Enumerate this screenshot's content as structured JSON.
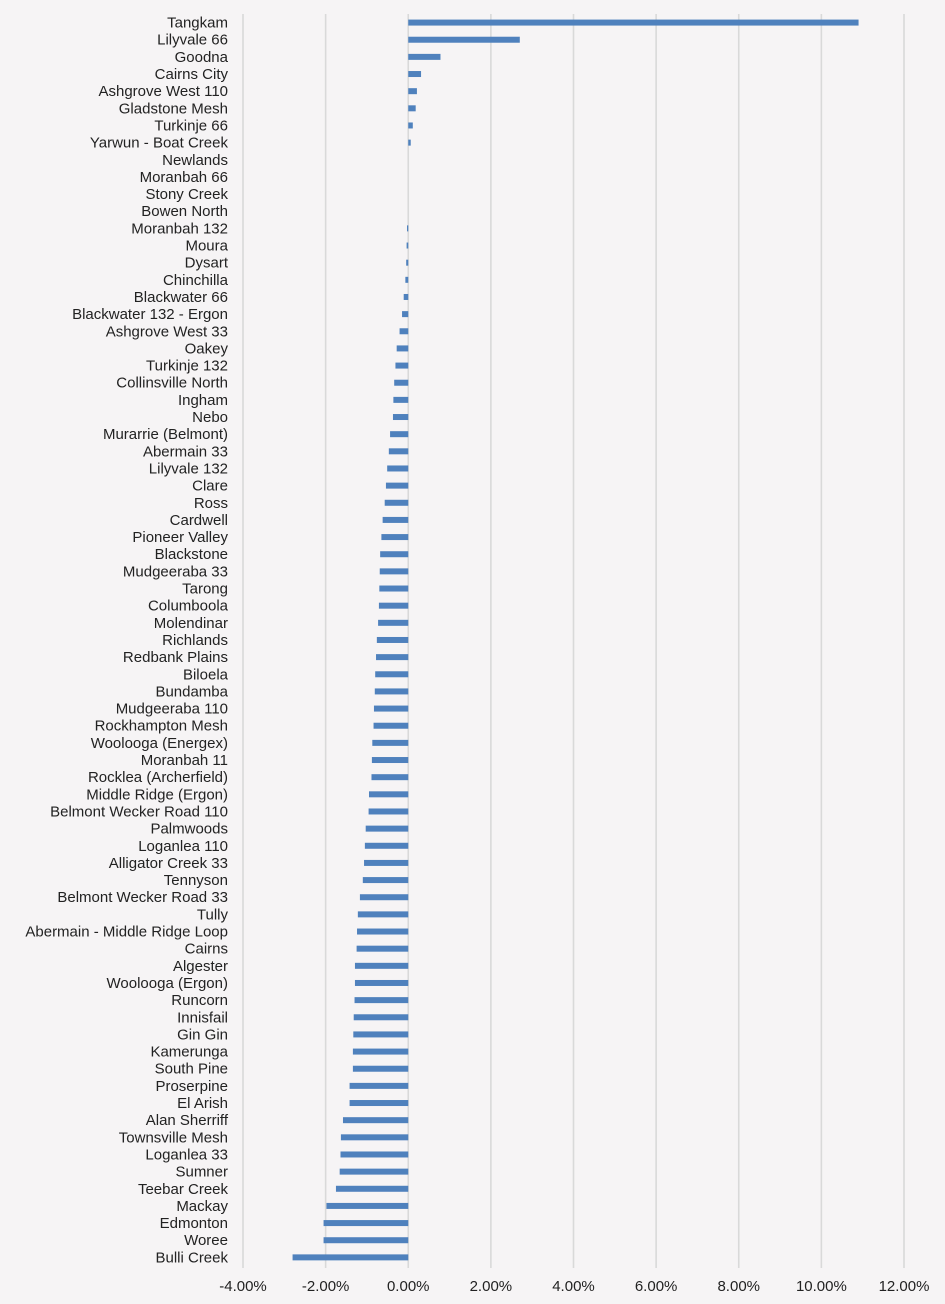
{
  "chart_data": {
    "type": "bar",
    "orientation": "horizontal",
    "title": "",
    "xlabel": "",
    "ylabel": "",
    "xlim": [
      -0.04,
      0.12
    ],
    "x_ticks": [
      -0.04,
      -0.02,
      0.0,
      0.02,
      0.04,
      0.06,
      0.08,
      0.1,
      0.12
    ],
    "x_tick_labels": [
      "-4.00%",
      "-2.00%",
      "0.00%",
      "2.00%",
      "4.00%",
      "6.00%",
      "8.00%",
      "10.00%",
      "12.00%"
    ],
    "grid": "vertical",
    "legend": "none",
    "bar_color": "#4f81bd",
    "grid_color": "#d9d9d9",
    "categories": [
      "Tangkam",
      "Lilyvale 66",
      "Goodna",
      "Cairns City",
      "Ashgrove West 110",
      "Gladstone Mesh",
      "Turkinje 66",
      "Yarwun - Boat Creek",
      "Newlands",
      "Moranbah 66",
      "Stony Creek",
      "Bowen North",
      "Moranbah 132",
      "Moura",
      "Dysart",
      "Chinchilla",
      "Blackwater 66",
      "Blackwater 132 - Ergon",
      "Ashgrove West 33",
      "Oakey",
      "Turkinje 132",
      "Collinsville North",
      "Ingham",
      "Nebo",
      "Murarrie (Belmont)",
      "Abermain 33",
      "Lilyvale 132",
      "Clare",
      "Ross",
      "Cardwell",
      "Pioneer Valley",
      "Blackstone",
      "Mudgeeraba 33",
      "Tarong",
      "Columboola",
      "Molendinar",
      "Richlands",
      "Redbank Plains",
      "Biloela",
      "Bundamba",
      "Mudgeeraba 110",
      "Rockhampton Mesh",
      "Woolooga (Energex)",
      "Moranbah 11",
      "Rocklea (Archerfield)",
      "Middle Ridge (Ergon)",
      "Belmont Wecker Road 110",
      "Palmwoods",
      "Loganlea 110",
      "Alligator Creek 33",
      "Tennyson",
      "Belmont Wecker Road 33",
      "Tully",
      "Abermain - Middle Ridge Loop",
      "Cairns",
      "Algester",
      "Woolooga (Ergon)",
      "Runcorn",
      "Innisfail",
      "Gin Gin",
      "Kamerunga",
      "South Pine",
      "Proserpine",
      "El Arish",
      "Alan Sherriff",
      "Townsville Mesh",
      "Loganlea 33",
      "Sumner",
      "Teebar Creek",
      "Mackay",
      "Edmonton",
      "Woree",
      "Bulli Creek"
    ],
    "values": [
      0.109,
      0.027,
      0.0078,
      0.0031,
      0.0021,
      0.0018,
      0.0011,
      0.0006,
      0.0,
      0.0,
      0.0,
      0.0,
      -0.0003,
      -0.0004,
      -0.0005,
      -0.0007,
      -0.0011,
      -0.0015,
      -0.0021,
      -0.0028,
      -0.0031,
      -0.0034,
      -0.0036,
      -0.0037,
      -0.0044,
      -0.0047,
      -0.0051,
      -0.0054,
      -0.0057,
      -0.0062,
      -0.0065,
      -0.0068,
      -0.0069,
      -0.007,
      -0.0071,
      -0.0073,
      -0.0076,
      -0.0078,
      -0.008,
      -0.0081,
      -0.0083,
      -0.0084,
      -0.0087,
      -0.0088,
      -0.0089,
      -0.0095,
      -0.0096,
      -0.0103,
      -0.0105,
      -0.0107,
      -0.011,
      -0.0117,
      -0.0122,
      -0.0124,
      -0.0125,
      -0.0129,
      -0.0129,
      -0.013,
      -0.0132,
      -0.0133,
      -0.0134,
      -0.0134,
      -0.0142,
      -0.0142,
      -0.0158,
      -0.0163,
      -0.0164,
      -0.0166,
      -0.0175,
      -0.0198,
      -0.0205,
      -0.0205,
      -0.028
    ]
  }
}
